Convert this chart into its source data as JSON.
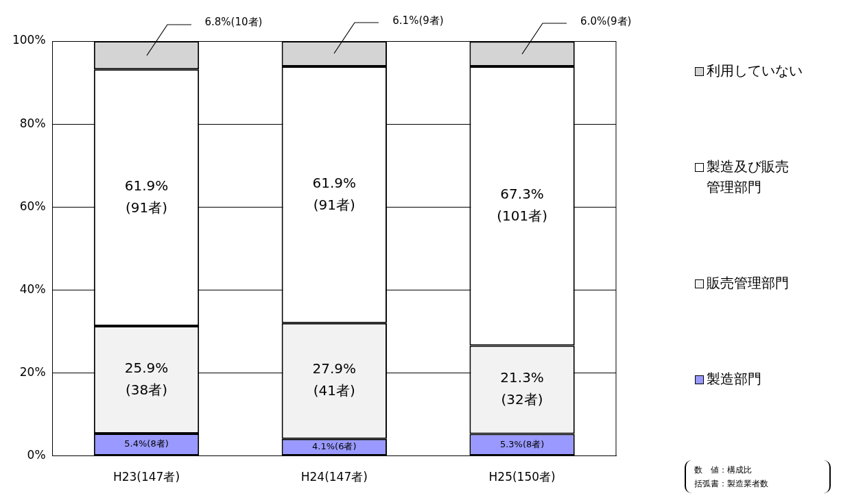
{
  "chart_data": {
    "type": "bar",
    "stacked": true,
    "categories": [
      "H23(147者)",
      "H24(147者)",
      "H25(150者)"
    ],
    "series": [
      {
        "name": "製造部門",
        "color": "#9999ff",
        "values": [
          5.4,
          4.1,
          5.3
        ],
        "value_labels": [
          "5.4%(8者)",
          "4.1%(6者)",
          "5.3%(8者)"
        ]
      },
      {
        "name": "販売管理部門",
        "color": "#f2f2f2",
        "values": [
          25.9,
          27.9,
          21.3
        ],
        "value_labels": [
          "25.9%\n(38者)",
          "27.9%\n(41者)",
          "21.3%\n(32者)"
        ]
      },
      {
        "name": "製造及び販売管理部門",
        "color": "#ffffff",
        "values": [
          61.9,
          61.9,
          67.3
        ],
        "value_labels": [
          "61.9%\n(91者)",
          "61.9%\n(91者)",
          "67.3%\n(101者)"
        ]
      },
      {
        "name": "利用していない",
        "color": "#d4d4d4",
        "values": [
          6.8,
          6.1,
          6.0
        ],
        "value_labels": [
          "6.8%(10者)",
          "6.1%(9者)",
          "6.0%(9者)"
        ]
      }
    ],
    "ylim": [
      0,
      100
    ],
    "yticks": [
      {
        "value": 0,
        "label": "0%"
      },
      {
        "value": 20,
        "label": "20%"
      },
      {
        "value": 40,
        "label": "40%"
      },
      {
        "value": 60,
        "label": "60%"
      },
      {
        "value": 80,
        "label": "80%"
      },
      {
        "value": 100,
        "label": "100%"
      }
    ],
    "grid": "y",
    "legend": "right",
    "annotations": [
      "数　値：構成比",
      "括弧書：製造業者数"
    ]
  }
}
